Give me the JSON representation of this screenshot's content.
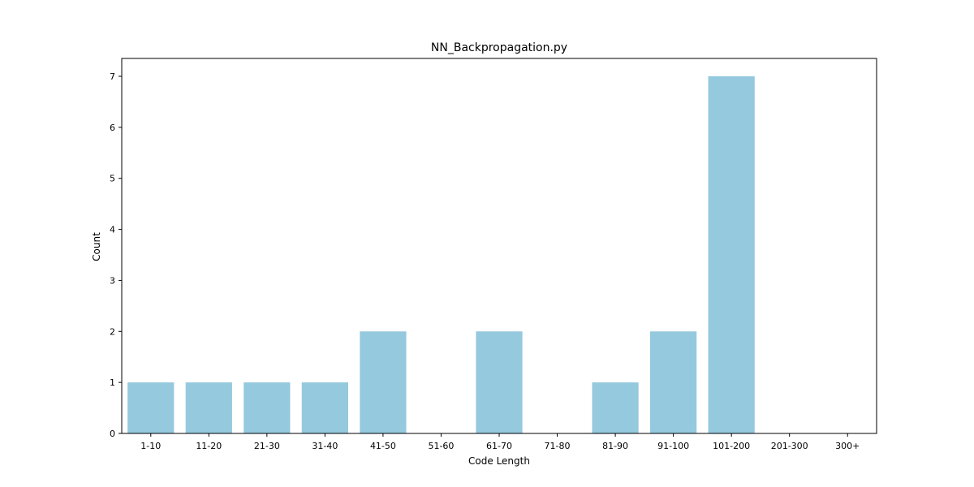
{
  "chart_data": {
    "type": "bar",
    "title": "NN_Backpropagation.py",
    "xlabel": "Code Length",
    "ylabel": "Count",
    "categories": [
      "1-10",
      "11-20",
      "21-30",
      "31-40",
      "41-50",
      "51-60",
      "61-70",
      "71-80",
      "81-90",
      "91-100",
      "101-200",
      "201-300",
      "300+"
    ],
    "values": [
      1,
      1,
      1,
      1,
      2,
      0,
      2,
      0,
      1,
      2,
      7,
      0,
      0
    ],
    "ylim": [
      0,
      7.35
    ],
    "yticks": [
      0,
      1,
      2,
      3,
      4,
      5,
      6,
      7
    ],
    "grid": false,
    "bar_color": "#95c9de"
  }
}
